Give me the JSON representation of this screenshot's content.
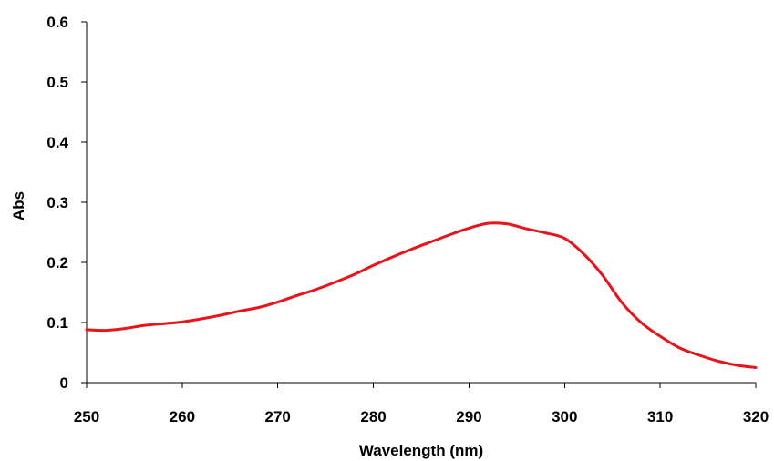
{
  "chart_data": {
    "type": "line",
    "title": "",
    "xlabel": "Wavelength (nm)",
    "ylabel": "Abs",
    "xlim": [
      250,
      320
    ],
    "ylim": [
      0,
      0.6
    ],
    "x_ticks": [
      250,
      260,
      270,
      280,
      290,
      300,
      310,
      320
    ],
    "y_ticks": [
      0,
      0.1,
      0.2,
      0.3,
      0.4,
      0.5,
      0.6
    ],
    "x_tick_labels": [
      "250",
      "260",
      "270",
      "280",
      "290",
      "300",
      "310",
      "320"
    ],
    "y_tick_labels": [
      "0",
      "0.1",
      "0.2",
      "0.3",
      "0.4",
      "0.5",
      "0.6"
    ],
    "grid": false,
    "legend": "none",
    "line_color": "#e8141c",
    "series": [
      {
        "x": [
          250,
          252,
          254,
          256,
          258,
          260,
          262,
          264,
          266,
          268,
          270,
          272,
          274,
          276,
          278,
          280,
          282,
          284,
          286,
          288,
          290,
          292,
          294,
          296,
          298,
          300,
          302,
          304,
          306,
          308,
          310,
          312,
          314,
          316,
          318,
          320
        ],
        "y": [
          0.088,
          0.087,
          0.09,
          0.095,
          0.098,
          0.101,
          0.106,
          0.112,
          0.119,
          0.125,
          0.134,
          0.145,
          0.155,
          0.167,
          0.18,
          0.195,
          0.209,
          0.222,
          0.234,
          0.246,
          0.257,
          0.265,
          0.264,
          0.256,
          0.249,
          0.24,
          0.214,
          0.178,
          0.133,
          0.1,
          0.077,
          0.058,
          0.046,
          0.036,
          0.029,
          0.025
        ]
      }
    ]
  }
}
